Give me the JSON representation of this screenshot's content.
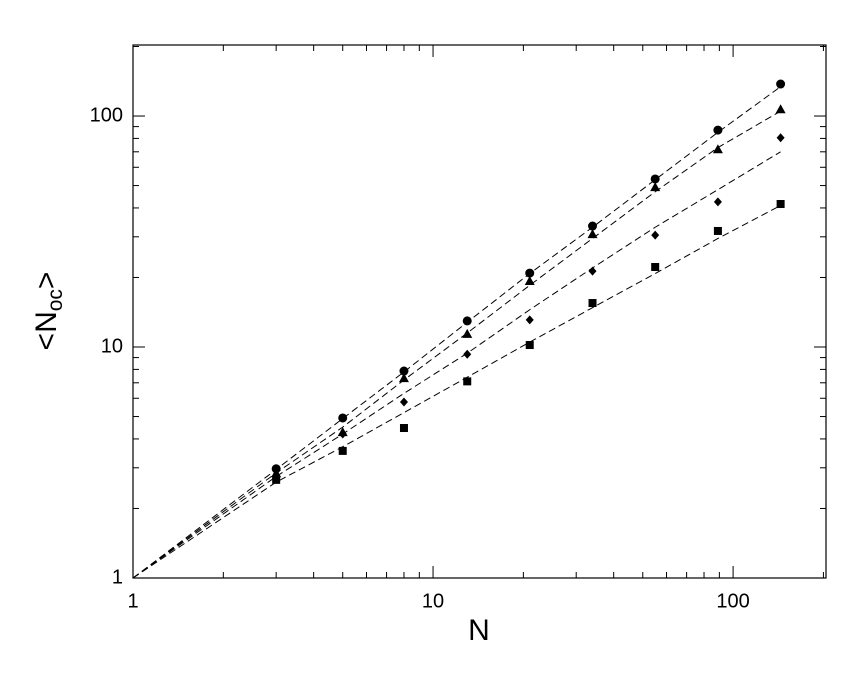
{
  "chart_data": {
    "type": "scatter",
    "xlabel": "N",
    "ylabel": [
      "<N",
      "oc",
      ">"
    ],
    "xscale": "log",
    "yscale": "log",
    "xlim": [
      1,
      204
    ],
    "ylim": [
      1,
      203
    ],
    "xticks": [
      1,
      10,
      100
    ],
    "yticks": [
      1,
      10,
      100
    ],
    "xminorticks": [
      2,
      3,
      4,
      5,
      6,
      7,
      8,
      9,
      20,
      30,
      40,
      50,
      60,
      70,
      80,
      90,
      200
    ],
    "yminorticks": [
      2,
      3,
      4,
      5,
      6,
      7,
      8,
      9,
      20,
      30,
      40,
      50,
      60,
      70,
      80,
      90,
      200
    ],
    "series": [
      {
        "marker": "circle",
        "color": "#000000",
        "x": [
          3,
          5,
          8,
          13,
          21,
          34,
          55,
          89,
          144
        ],
        "values": [
          2.97,
          4.93,
          7.87,
          12.97,
          20.9,
          33.4,
          53.4,
          86.9,
          137.6
        ]
      },
      {
        "marker": "triangle",
        "color": "#000000",
        "x": [
          3,
          5,
          8,
          13,
          21,
          34,
          55,
          89,
          144
        ],
        "values": [
          2.84,
          4.28,
          7.33,
          11.4,
          19.3,
          30.8,
          49.2,
          71.8,
          107
        ]
      },
      {
        "marker": "diamond",
        "color": "#000000",
        "x": [
          3,
          5,
          8,
          13,
          21,
          34,
          55,
          89,
          144
        ],
        "values": [
          2.71,
          4.2,
          5.78,
          9.3,
          13.1,
          21.3,
          30.5,
          42.5,
          80.5
        ]
      },
      {
        "marker": "square",
        "color": "#000000",
        "x": [
          3,
          5,
          8,
          13,
          21,
          34,
          55,
          89,
          144
        ],
        "values": [
          2.66,
          3.55,
          4.46,
          7.1,
          10.2,
          15.5,
          22.2,
          31.8,
          41.6
        ]
      },
      {
        "marker": "dashed-line",
        "color": "#000000",
        "x": [
          1,
          3,
          5,
          8,
          13,
          21,
          34,
          55,
          89,
          144
        ],
        "values": [
          1,
          2.95,
          4.9,
          7.8,
          12.8,
          20.8,
          33,
          53,
          85,
          134
        ]
      },
      {
        "marker": "dashed-line",
        "color": "#000000",
        "x": [
          1,
          3,
          5,
          8,
          13,
          21,
          34,
          55,
          89,
          144
        ],
        "values": [
          1,
          2.85,
          4.5,
          7.2,
          11.5,
          18.5,
          29.5,
          47,
          73,
          105
        ]
      },
      {
        "marker": "dashed-line",
        "color": "#000000",
        "x": [
          1,
          3,
          5,
          8,
          13,
          21,
          34,
          55,
          89,
          144
        ],
        "values": [
          1,
          2.75,
          4.2,
          6.3,
          9.4,
          14.5,
          22,
          33,
          48,
          70
        ]
      },
      {
        "marker": "dashed-line",
        "color": "#000000",
        "x": [
          1,
          3,
          5,
          8,
          13,
          21,
          34,
          55,
          89,
          144
        ],
        "values": [
          1,
          2.6,
          3.7,
          5.2,
          7.4,
          10.5,
          14.8,
          20.8,
          29.5,
          41
        ]
      }
    ]
  }
}
